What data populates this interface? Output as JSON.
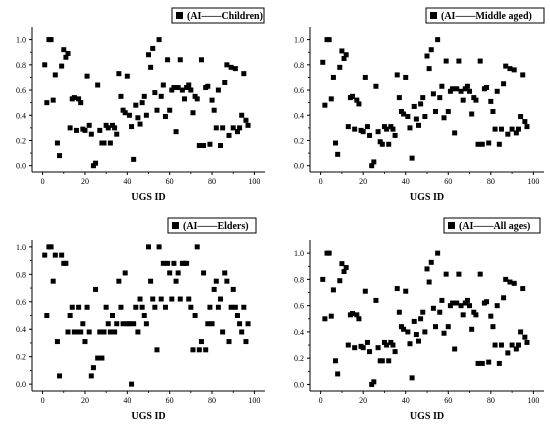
{
  "chart_data": [
    {
      "type": "scatter",
      "legend": "(AI——Children)",
      "legend_position": "top-right",
      "xlabel": "UGS ID",
      "ylabel": "",
      "xlim": [
        -5,
        105
      ],
      "ylim": [
        -0.05,
        1.1
      ],
      "xticks": [
        "0",
        "20",
        "40",
        "60",
        "80",
        "100"
      ],
      "yticks": [
        "0.0",
        "0.2",
        "0.4",
        "0.6",
        "0.8",
        "1.0"
      ],
      "grid": false,
      "marker_color": "#000000",
      "x": [
        1,
        2,
        3,
        4,
        5,
        6,
        7,
        8,
        9,
        10,
        11,
        12,
        13,
        14,
        15,
        16,
        17,
        18,
        19,
        20,
        21,
        22,
        23,
        24,
        25,
        26,
        27,
        28,
        29,
        30,
        31,
        32,
        33,
        34,
        35,
        36,
        37,
        38,
        39,
        40,
        41,
        42,
        43,
        44,
        45,
        46,
        47,
        48,
        49,
        50,
        51,
        52,
        53,
        54,
        55,
        56,
        57,
        58,
        59,
        60,
        61,
        62,
        63,
        64,
        65,
        66,
        67,
        68,
        69,
        70,
        71,
        72,
        73,
        74,
        75,
        76,
        77,
        78,
        79,
        80,
        81,
        82,
        83,
        84,
        85,
        86,
        87,
        88,
        89,
        90,
        91,
        92,
        93,
        94,
        95,
        96,
        97
      ],
      "y": [
        0.8,
        0.5,
        1.0,
        1.0,
        0.52,
        0.72,
        0.18,
        0.08,
        0.79,
        0.92,
        0.86,
        0.89,
        0.3,
        0.53,
        0.54,
        0.28,
        0.53,
        0.5,
        0.29,
        0.28,
        0.71,
        0.32,
        0.25,
        0.0,
        0.02,
        0.64,
        0.28,
        0.18,
        0.18,
        0.32,
        0.3,
        0.18,
        0.32,
        0.3,
        0.25,
        0.73,
        0.55,
        0.44,
        0.42,
        0.71,
        0.4,
        0.31,
        0.05,
        0.48,
        0.38,
        0.33,
        0.5,
        0.55,
        0.4,
        0.88,
        0.78,
        0.93,
        0.58,
        0.44,
        1.0,
        0.55,
        0.64,
        0.39,
        0.84,
        0.44,
        0.6,
        0.62,
        0.27,
        0.62,
        0.84,
        0.6,
        0.53,
        0.62,
        0.64,
        0.6,
        0.42,
        0.55,
        0.53,
        0.16,
        0.84,
        0.16,
        0.62,
        0.63,
        0.17,
        0.52,
        0.44,
        0.3,
        0.6,
        0.16,
        0.3,
        0.66,
        0.8,
        0.24,
        0.78,
        0.3,
        0.77,
        0.27,
        0.3,
        0.4,
        0.73,
        0.36,
        0.32
      ]
    },
    {
      "type": "scatter",
      "legend": "(AI——Middle aged)",
      "legend_position": "top-right",
      "xlabel": "UGS ID",
      "ylabel": "",
      "xlim": [
        -5,
        105
      ],
      "ylim": [
        -0.05,
        1.1
      ],
      "xticks": [
        "0",
        "20",
        "40",
        "60",
        "80",
        "100"
      ],
      "yticks": [
        "0.0",
        "0.2",
        "0.4",
        "0.6",
        "0.8",
        "1.0"
      ],
      "grid": false,
      "marker_color": "#000000",
      "x": [
        1,
        2,
        3,
        4,
        5,
        6,
        7,
        8,
        9,
        10,
        11,
        12,
        13,
        14,
        15,
        16,
        17,
        18,
        19,
        20,
        21,
        22,
        23,
        24,
        25,
        26,
        27,
        28,
        29,
        30,
        31,
        32,
        33,
        34,
        35,
        36,
        37,
        38,
        39,
        40,
        41,
        42,
        43,
        44,
        45,
        46,
        47,
        48,
        49,
        50,
        51,
        52,
        53,
        54,
        55,
        56,
        57,
        58,
        59,
        60,
        61,
        62,
        63,
        64,
        65,
        66,
        67,
        68,
        69,
        70,
        71,
        72,
        73,
        74,
        75,
        76,
        77,
        78,
        79,
        80,
        81,
        82,
        83,
        84,
        85,
        86,
        87,
        88,
        89,
        90,
        91,
        92,
        93,
        94,
        95,
        96,
        97
      ],
      "y": [
        0.82,
        0.48,
        1.0,
        1.0,
        0.53,
        0.7,
        0.18,
        0.09,
        0.78,
        0.91,
        0.85,
        0.88,
        0.31,
        0.54,
        0.55,
        0.29,
        0.52,
        0.49,
        0.28,
        0.27,
        0.7,
        0.31,
        0.24,
        0.0,
        0.03,
        0.63,
        0.27,
        0.19,
        0.17,
        0.31,
        0.29,
        0.17,
        0.31,
        0.29,
        0.24,
        0.72,
        0.54,
        0.43,
        0.41,
        0.7,
        0.39,
        0.3,
        0.06,
        0.47,
        0.37,
        0.32,
        0.49,
        0.54,
        0.39,
        0.87,
        0.77,
        0.92,
        0.57,
        0.43,
        1.0,
        0.54,
        0.63,
        0.38,
        0.83,
        0.43,
        0.59,
        0.61,
        0.26,
        0.61,
        0.83,
        0.59,
        0.52,
        0.61,
        0.63,
        0.59,
        0.41,
        0.54,
        0.52,
        0.17,
        0.83,
        0.17,
        0.61,
        0.62,
        0.18,
        0.51,
        0.43,
        0.29,
        0.59,
        0.17,
        0.29,
        0.65,
        0.79,
        0.25,
        0.77,
        0.29,
        0.76,
        0.26,
        0.29,
        0.39,
        0.72,
        0.35,
        0.31
      ]
    },
    {
      "type": "scatter",
      "legend": "(AI——Elders)",
      "legend_position": "top-right",
      "xlabel": "UGS ID",
      "ylabel": "",
      "xlim": [
        -5,
        105
      ],
      "ylim": [
        -0.05,
        1.05
      ],
      "xticks": [
        "0",
        "20",
        "40",
        "60",
        "80",
        "100"
      ],
      "yticks": [
        "0.0",
        "0.2",
        "0.4",
        "0.6",
        "0.8",
        "1.0"
      ],
      "grid": false,
      "marker_color": "#000000",
      "x": [
        1,
        2,
        3,
        4,
        5,
        6,
        7,
        8,
        9,
        10,
        11,
        12,
        13,
        14,
        15,
        16,
        17,
        18,
        19,
        20,
        21,
        22,
        23,
        24,
        25,
        26,
        27,
        28,
        29,
        30,
        31,
        32,
        33,
        34,
        35,
        36,
        37,
        38,
        39,
        40,
        41,
        42,
        43,
        44,
        45,
        46,
        47,
        48,
        49,
        50,
        51,
        52,
        53,
        54,
        55,
        56,
        57,
        58,
        59,
        60,
        61,
        62,
        63,
        64,
        65,
        66,
        67,
        68,
        69,
        70,
        71,
        72,
        73,
        74,
        75,
        76,
        77,
        78,
        79,
        80,
        81,
        82,
        83,
        84,
        85,
        86,
        87,
        88,
        89,
        90,
        91,
        92,
        93,
        94,
        95,
        96,
        97
      ],
      "y": [
        0.94,
        0.5,
        1.0,
        1.0,
        0.75,
        0.94,
        0.31,
        0.06,
        0.94,
        0.88,
        0.88,
        0.38,
        0.5,
        0.56,
        0.38,
        0.38,
        0.56,
        0.38,
        0.44,
        0.31,
        0.56,
        0.38,
        0.06,
        0.12,
        0.69,
        0.19,
        0.38,
        0.19,
        0.38,
        0.56,
        0.44,
        0.38,
        0.5,
        0.38,
        0.44,
        0.75,
        0.56,
        0.44,
        0.81,
        0.44,
        0.44,
        0.0,
        0.44,
        0.56,
        0.38,
        0.62,
        0.56,
        0.5,
        0.44,
        1.0,
        0.75,
        0.62,
        0.56,
        0.25,
        1.0,
        0.62,
        0.88,
        0.56,
        0.88,
        0.81,
        0.62,
        0.88,
        0.75,
        0.81,
        0.62,
        0.88,
        0.88,
        0.88,
        0.62,
        0.56,
        0.25,
        0.5,
        1.0,
        0.25,
        0.31,
        0.81,
        0.25,
        0.44,
        0.56,
        0.44,
        0.69,
        0.75,
        0.56,
        0.62,
        0.38,
        0.81,
        0.75,
        0.31,
        0.56,
        0.69,
        0.56,
        0.5,
        0.44,
        0.38,
        0.56,
        0.31,
        0.44
      ]
    },
    {
      "type": "scatter",
      "legend": "(AI——All ages)",
      "legend_position": "top-right",
      "xlabel": "UGS ID",
      "ylabel": "",
      "xlim": [
        -5,
        105
      ],
      "ylim": [
        -0.05,
        1.1
      ],
      "xticks": [
        "0",
        "20",
        "40",
        "60",
        "80",
        "100"
      ],
      "yticks": [
        "0.0",
        "0.2",
        "0.4",
        "0.6",
        "0.8",
        "1.0"
      ],
      "grid": false,
      "marker_color": "#000000",
      "x": [
        1,
        2,
        3,
        4,
        5,
        6,
        7,
        8,
        9,
        10,
        11,
        12,
        13,
        14,
        15,
        16,
        17,
        18,
        19,
        20,
        21,
        22,
        23,
        24,
        25,
        26,
        27,
        28,
        29,
        30,
        31,
        32,
        33,
        34,
        35,
        36,
        37,
        38,
        39,
        40,
        41,
        42,
        43,
        44,
        45,
        46,
        47,
        48,
        49,
        50,
        51,
        52,
        53,
        54,
        55,
        56,
        57,
        58,
        59,
        60,
        61,
        62,
        63,
        64,
        65,
        66,
        67,
        68,
        69,
        70,
        71,
        72,
        73,
        74,
        75,
        76,
        77,
        78,
        79,
        80,
        81,
        82,
        83,
        84,
        85,
        86,
        87,
        88,
        89,
        90,
        91,
        92,
        93,
        94,
        95,
        96,
        97
      ],
      "y": [
        0.8,
        0.5,
        1.0,
        1.0,
        0.52,
        0.72,
        0.18,
        0.08,
        0.79,
        0.92,
        0.86,
        0.89,
        0.3,
        0.53,
        0.54,
        0.28,
        0.53,
        0.5,
        0.29,
        0.28,
        0.71,
        0.32,
        0.25,
        0.0,
        0.02,
        0.64,
        0.28,
        0.18,
        0.18,
        0.32,
        0.3,
        0.18,
        0.32,
        0.3,
        0.25,
        0.73,
        0.55,
        0.44,
        0.42,
        0.71,
        0.4,
        0.31,
        0.05,
        0.48,
        0.38,
        0.33,
        0.5,
        0.55,
        0.4,
        0.88,
        0.78,
        0.93,
        0.58,
        0.44,
        1.0,
        0.55,
        0.64,
        0.39,
        0.84,
        0.44,
        0.6,
        0.62,
        0.27,
        0.62,
        0.84,
        0.6,
        0.53,
        0.62,
        0.64,
        0.6,
        0.42,
        0.55,
        0.53,
        0.16,
        0.84,
        0.16,
        0.62,
        0.63,
        0.17,
        0.52,
        0.44,
        0.3,
        0.6,
        0.16,
        0.3,
        0.66,
        0.8,
        0.24,
        0.78,
        0.3,
        0.77,
        0.27,
        0.3,
        0.4,
        0.73,
        0.36,
        0.32
      ]
    }
  ]
}
